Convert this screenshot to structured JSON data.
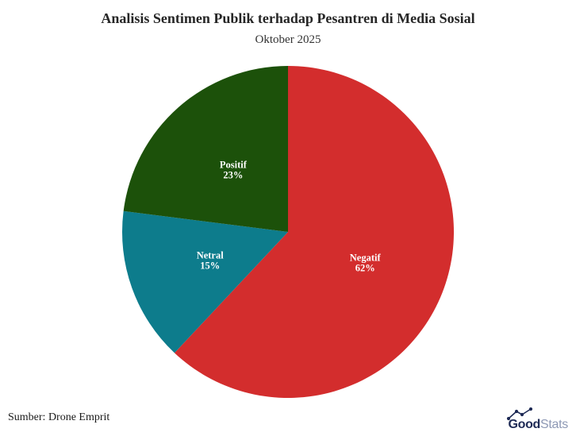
{
  "header": {
    "title": "Analisis Sentimen Publik terhadap Pesantren di Media Sosial",
    "subtitle": "Oktober 2025"
  },
  "footer": {
    "source": "Sumber: Drone Emprit",
    "logo": {
      "bold_text": "Good",
      "light_text": "Stats",
      "navy_color": "#1e2a55",
      "light_color": "#8e99b5"
    }
  },
  "chart_data": {
    "type": "pie",
    "title": "Analisis Sentimen Publik terhadap Pesantren di Media Sosial",
    "subtitle": "Oktober 2025",
    "unit": "%",
    "start_position": "12-o'clock",
    "direction": "clockwise",
    "label_text_color": "#ffffff",
    "label_radius_fraction": 0.5,
    "slices": [
      {
        "label": "Negatif",
        "value": 62,
        "percent_label": "62%",
        "color": "#d32d2d"
      },
      {
        "label": "Netral",
        "value": 15,
        "percent_label": "15%",
        "color": "#0d7c8c"
      },
      {
        "label": "Positif",
        "value": 23,
        "percent_label": "23%",
        "color": "#1c510a"
      }
    ],
    "source": "Sumber: Drone Emprit"
  }
}
